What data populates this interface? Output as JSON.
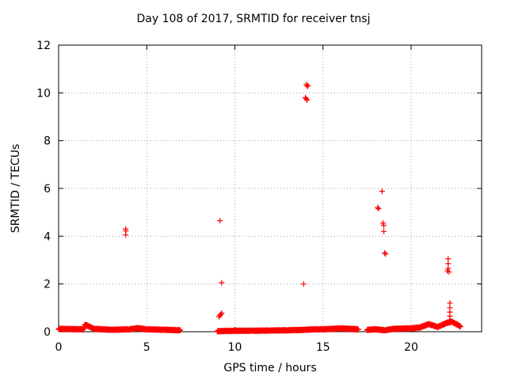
{
  "chart_data": {
    "type": "scatter",
    "title": "Day 108 of 2017, SRMTID for receiver tnsj",
    "xlabel": "GPS time / hours",
    "ylabel": "SRMTID / TECUs",
    "xlim": [
      0,
      24
    ],
    "ylim": [
      0,
      12
    ],
    "x_ticks": [
      0,
      5,
      10,
      15,
      20
    ],
    "y_ticks": [
      0,
      2,
      4,
      6,
      8,
      10,
      12
    ],
    "grid": true,
    "marker": "+",
    "color": "#ff0000",
    "baseline_segments": [
      {
        "x": [
          0.0,
          1.4,
          1.5,
          2.0,
          3.0,
          4.0,
          4.5,
          5.0,
          6.0,
          6.9
        ],
        "y": [
          0.12,
          0.1,
          0.3,
          0.12,
          0.08,
          0.1,
          0.15,
          0.1,
          0.08,
          0.06
        ]
      },
      {
        "x": [
          9.0,
          9.5,
          10.0,
          11.0,
          12.0,
          13.0,
          14.0,
          14.5,
          15.0,
          16.0,
          17.0
        ],
        "y": [
          0.02,
          0.03,
          0.04,
          0.04,
          0.05,
          0.06,
          0.08,
          0.1,
          0.1,
          0.14,
          0.1
        ]
      },
      {
        "x": [
          17.5,
          18.0,
          18.5,
          19.0,
          20.0,
          20.5,
          21.0,
          21.5,
          22.0,
          22.3,
          22.8
        ],
        "y": [
          0.08,
          0.1,
          0.06,
          0.12,
          0.14,
          0.18,
          0.32,
          0.2,
          0.36,
          0.42,
          0.22
        ]
      }
    ],
    "points": [
      {
        "x": 3.8,
        "y": 4.3
      },
      {
        "x": 3.82,
        "y": 4.22
      },
      {
        "x": 3.8,
        "y": 4.05
      },
      {
        "x": 9.15,
        "y": 4.65
      },
      {
        "x": 9.25,
        "y": 2.05
      },
      {
        "x": 9.1,
        "y": 0.62
      },
      {
        "x": 9.2,
        "y": 0.72
      },
      {
        "x": 9.25,
        "y": 0.78
      },
      {
        "x": 9.15,
        "y": 0.68
      },
      {
        "x": 13.9,
        "y": 2.0
      },
      {
        "x": 14.05,
        "y": 10.35
      },
      {
        "x": 14.15,
        "y": 10.3
      },
      {
        "x": 14.1,
        "y": 10.28
      },
      {
        "x": 14.0,
        "y": 9.8
      },
      {
        "x": 14.05,
        "y": 9.75
      },
      {
        "x": 14.1,
        "y": 9.7
      },
      {
        "x": 18.1,
        "y": 5.2
      },
      {
        "x": 18.15,
        "y": 5.15
      },
      {
        "x": 18.35,
        "y": 5.88
      },
      {
        "x": 18.4,
        "y": 4.55
      },
      {
        "x": 18.45,
        "y": 4.45
      },
      {
        "x": 18.45,
        "y": 4.2
      },
      {
        "x": 18.5,
        "y": 3.3
      },
      {
        "x": 18.55,
        "y": 3.25
      },
      {
        "x": 22.1,
        "y": 3.05
      },
      {
        "x": 22.1,
        "y": 2.85
      },
      {
        "x": 22.1,
        "y": 2.65
      },
      {
        "x": 22.05,
        "y": 2.55
      },
      {
        "x": 22.15,
        "y": 2.5
      },
      {
        "x": 22.2,
        "y": 1.2
      },
      {
        "x": 22.2,
        "y": 1.0
      },
      {
        "x": 22.2,
        "y": 0.82
      },
      {
        "x": 22.2,
        "y": 0.65
      },
      {
        "x": 22.2,
        "y": 0.5
      }
    ]
  }
}
